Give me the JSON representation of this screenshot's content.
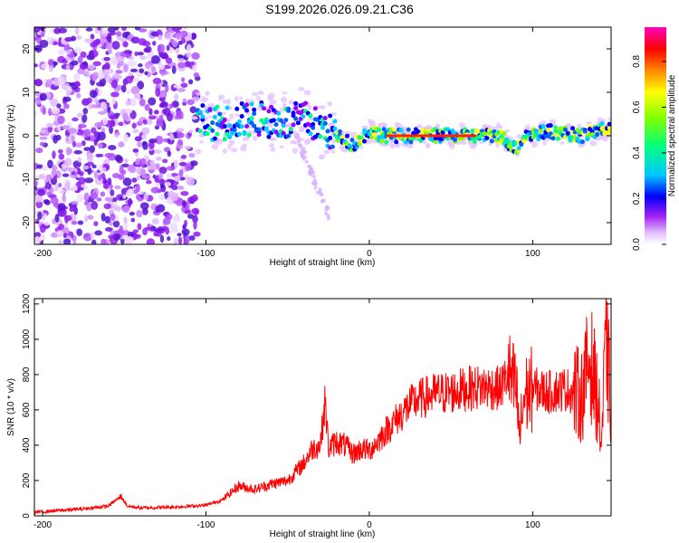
{
  "title": "S199.2026.026.09.21.C36",
  "chart_data": [
    {
      "type": "heatmap",
      "panel": "spectrogram",
      "xlabel": "Height of straight line (km)",
      "ylabel": "Frequency (Hz)",
      "xlim": [
        -205,
        148
      ],
      "ylim": [
        -25,
        25
      ],
      "xticks": [
        -200,
        -100,
        0,
        100
      ],
      "yticks": [
        -20,
        -10,
        0,
        10,
        20
      ],
      "colorbar": {
        "label": "Normalized spectral amplitude",
        "range": [
          0,
          0.95
        ],
        "ticks": [
          0.0,
          0.2,
          0.4,
          0.6,
          0.8
        ],
        "tick_labels": [
          "0.0",
          "0.2",
          "0.4",
          "0.6",
          "0.8"
        ],
        "colors": [
          "#ffffff",
          "#e0b0ff",
          "#9900ff",
          "#0000ff",
          "#00ffff",
          "#00ff00",
          "#ffff00",
          "#ff8800",
          "#ff0000",
          "#ff00ff"
        ]
      },
      "ridge": {
        "description_of_data": "dominant frequency track (Hz) vs height (km)",
        "x": [
          -105,
          -90,
          -70,
          -50,
          -40,
          -30,
          -20,
          -10,
          0,
          10,
          20,
          40,
          60,
          80,
          90,
          95,
          110,
          130,
          148
        ],
        "y": [
          3,
          3,
          4,
          3,
          4,
          2,
          0,
          -2,
          1,
          0,
          0,
          0,
          0,
          0,
          -3,
          0,
          1,
          0,
          2
        ]
      }
    },
    {
      "type": "line",
      "panel": "snr",
      "xlabel": "Height of straight line (km)",
      "ylabel": "SNR (10 * v/v)",
      "xlim": [
        -205,
        148
      ],
      "ylim": [
        0,
        1230
      ],
      "xticks": [
        -200,
        -100,
        0,
        100
      ],
      "yticks": [
        0,
        200,
        400,
        600,
        800,
        1000,
        1200
      ],
      "color": "#ff0000",
      "series": [
        {
          "name": "SNR",
          "x": [
            -205,
            -190,
            -175,
            -160,
            -152,
            -148,
            -140,
            -120,
            -100,
            -90,
            -80,
            -70,
            -60,
            -50,
            -45,
            -40,
            -35,
            -30,
            -27,
            -25,
            -20,
            -15,
            -10,
            -5,
            0,
            5,
            10,
            15,
            20,
            25,
            30,
            40,
            50,
            60,
            70,
            80,
            85,
            90,
            92,
            95,
            100,
            110,
            120,
            130,
            135,
            140,
            142,
            145,
            148
          ],
          "y": [
            20,
            30,
            40,
            55,
            110,
            55,
            45,
            50,
            60,
            90,
            170,
            150,
            180,
            200,
            250,
            300,
            380,
            400,
            650,
            380,
            420,
            400,
            350,
            380,
            370,
            420,
            480,
            530,
            580,
            630,
            660,
            690,
            700,
            720,
            730,
            720,
            800,
            700,
            450,
            680,
            720,
            700,
            720,
            680,
            900,
            650,
            400,
            1000,
            600
          ]
        }
      ]
    }
  ]
}
